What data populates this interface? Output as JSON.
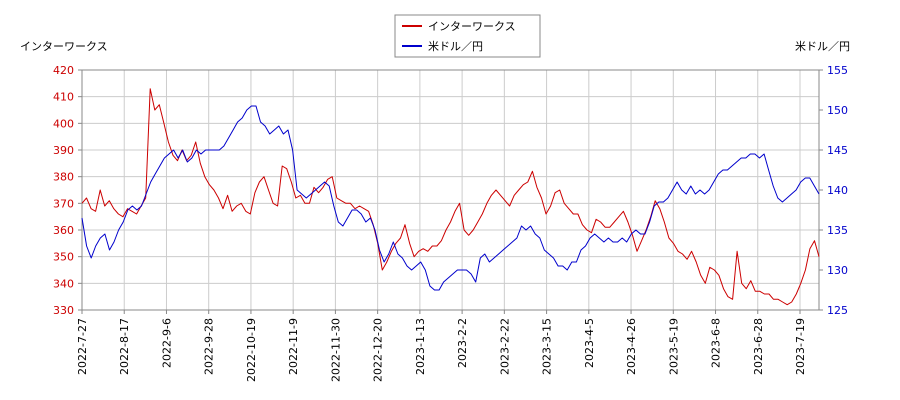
{
  "chart_data": {
    "type": "line",
    "left_axis_title": "インターワークス",
    "right_axis_title": "米ドル／円",
    "legend": {
      "placement": "top-center"
    },
    "grid": true,
    "x_ticks": [
      "2022-7-27",
      "2022-8-17",
      "2022-9-6",
      "2022-9-28",
      "2022-10-19",
      "2022-11-9",
      "2022-11-30",
      "2022-12-20",
      "2023-1-13",
      "2023-2-2",
      "2023-2-22",
      "2023-3-15",
      "2023-4-5",
      "2023-4-26",
      "2023-5-19",
      "2023-6-8",
      "2023-6-28",
      "2023-7-19"
    ],
    "y_left": {
      "ticks": [
        330,
        340,
        350,
        360,
        370,
        380,
        390,
        400,
        410,
        420
      ],
      "range": [
        330,
        420
      ],
      "color": "#cc0000"
    },
    "y_right": {
      "ticks": [
        125,
        130,
        135,
        140,
        145,
        150,
        155
      ],
      "range": [
        125,
        155
      ],
      "color": "#0000cc"
    },
    "series": [
      {
        "name": "インターワークス",
        "axis": "left",
        "color": "#cc0000",
        "values": [
          370,
          372,
          368,
          367,
          375,
          369,
          371,
          368,
          366,
          365,
          368,
          367,
          366,
          369,
          372,
          413,
          405,
          407,
          400,
          393,
          388,
          386,
          390,
          386,
          388,
          393,
          385,
          380,
          377,
          375,
          372,
          368,
          373,
          367,
          369,
          370,
          367,
          366,
          374,
          378,
          380,
          375,
          370,
          369,
          384,
          383,
          378,
          372,
          373,
          370,
          370,
          376,
          374,
          376,
          379,
          380,
          372,
          371,
          370,
          370,
          368,
          369,
          368,
          367,
          362,
          355,
          345,
          348,
          352,
          355,
          357,
          362,
          355,
          350,
          352,
          353,
          352,
          354,
          354,
          356,
          360,
          363,
          367,
          370,
          360,
          358,
          360,
          363,
          366,
          370,
          373,
          375,
          373,
          371,
          369,
          373,
          375,
          377,
          378,
          382,
          376,
          372,
          366,
          369,
          374,
          375,
          370,
          368,
          366,
          366,
          362,
          360,
          359,
          364,
          363,
          361,
          361,
          363,
          365,
          367,
          363,
          358,
          352,
          356,
          360,
          365,
          371,
          368,
          363,
          357,
          355,
          352,
          351,
          349,
          352,
          348,
          343,
          340,
          346,
          345,
          343,
          338,
          335,
          334,
          352,
          340,
          338,
          341,
          337,
          337,
          336,
          336,
          334,
          334,
          333,
          332,
          333,
          336,
          340,
          345,
          353,
          356,
          350
        ]
      },
      {
        "name": "米ドル／円",
        "axis": "right",
        "color": "#0000cc",
        "values": [
          136.5,
          133.0,
          131.5,
          133.0,
          134.0,
          134.5,
          132.5,
          133.5,
          135.0,
          136.0,
          137.5,
          138.0,
          137.5,
          138.0,
          139.5,
          141.0,
          142.0,
          143.0,
          144.0,
          144.5,
          145.0,
          144.0,
          145.0,
          143.5,
          144.0,
          145.0,
          144.5,
          145.0,
          145.0,
          145.0,
          145.0,
          145.5,
          146.5,
          147.5,
          148.5,
          149.0,
          150.0,
          150.5,
          150.5,
          148.5,
          148.0,
          147.0,
          147.5,
          148.0,
          147.0,
          147.5,
          145.0,
          140.0,
          139.5,
          139.0,
          139.5,
          140.0,
          140.5,
          141.0,
          140.5,
          138.0,
          136.0,
          135.5,
          136.5,
          137.5,
          137.5,
          137.0,
          136.0,
          136.5,
          135.0,
          132.5,
          131.0,
          132.0,
          133.5,
          132.0,
          131.5,
          130.5,
          130.0,
          130.5,
          131.0,
          130.0,
          128.0,
          127.5,
          127.5,
          128.5,
          129.0,
          129.5,
          130.0,
          130.0,
          130.0,
          129.5,
          128.5,
          131.5,
          132.0,
          131.0,
          131.5,
          132.0,
          132.5,
          133.0,
          133.5,
          134.0,
          135.5,
          135.0,
          135.5,
          134.5,
          134.0,
          132.5,
          132.0,
          131.5,
          130.5,
          130.5,
          130.0,
          131.0,
          131.0,
          132.5,
          133.0,
          134.0,
          134.5,
          134.0,
          133.5,
          134.0,
          133.5,
          133.5,
          134.0,
          133.5,
          134.5,
          135.0,
          134.5,
          134.5,
          136.0,
          138.0,
          138.5,
          138.5,
          139.0,
          140.0,
          141.0,
          140.0,
          139.5,
          140.5,
          139.5,
          140.0,
          139.5,
          140.0,
          141.0,
          142.0,
          142.5,
          142.5,
          143.0,
          143.5,
          144.0,
          144.0,
          144.5,
          144.5,
          144.0,
          144.5,
          142.5,
          140.5,
          139.0,
          138.5,
          139.0,
          139.5,
          140.0,
          141.0,
          141.5,
          141.5,
          140.5,
          139.5
        ]
      }
    ]
  }
}
